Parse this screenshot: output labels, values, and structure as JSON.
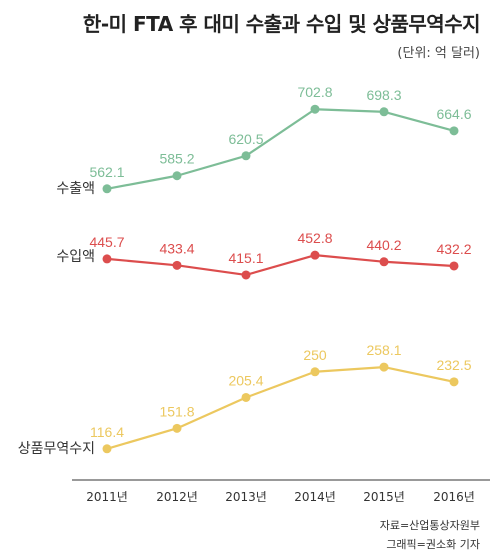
{
  "title": "한-미 FTA 후 대미 수출과 수입 및 상품무역수지",
  "unit": "(단위: 억 달러)",
  "source": "자료=산업통상자원부",
  "credit": "그래픽=권소화 기자",
  "colors": {
    "exports": "#7dbd97",
    "imports": "#dc4d4d",
    "balance": "#ecc85f",
    "axis": "#333333",
    "label": "#333333"
  },
  "chart_data": {
    "type": "line",
    "categories": [
      "2011년",
      "2012년",
      "2013년",
      "2014년",
      "2015년",
      "2016년"
    ],
    "series": [
      {
        "name": "수출액",
        "key": "exports",
        "values": [
          562.1,
          585.2,
          620.5,
          702.8,
          698.3,
          664.6
        ],
        "labels": [
          "562.1",
          "585.2",
          "620.5",
          "702.8",
          "698.3",
          "664.6"
        ]
      },
      {
        "name": "수입액",
        "key": "imports",
        "values": [
          445.7,
          433.4,
          415.1,
          452.8,
          440.2,
          432.2
        ],
        "labels": [
          "445.7",
          "433.4",
          "415.1",
          "452.8",
          "440.2",
          "432.2"
        ]
      },
      {
        "name": "상품무역수지",
        "key": "balance",
        "values": [
          116.4,
          151.8,
          205.4,
          250,
          258.1,
          232.5
        ],
        "labels": [
          "116.4",
          "151.8",
          "205.4",
          "250",
          "258.1",
          "232.5"
        ]
      }
    ]
  }
}
